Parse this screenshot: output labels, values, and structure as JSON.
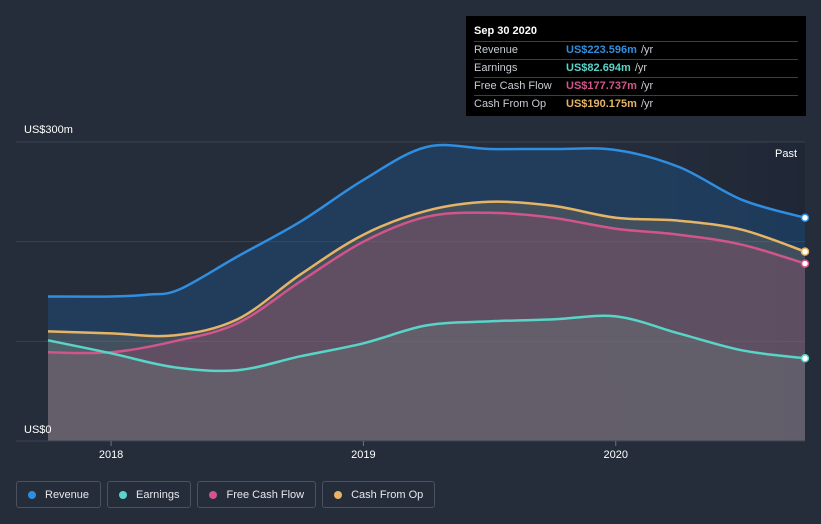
{
  "chart_data": {
    "type": "area",
    "y_unit_prefix": "US$",
    "y_unit_suffix": "m",
    "ylim": [
      0,
      300
    ],
    "y_tick_labels": [
      {
        "value": 300,
        "label": "US$300m"
      },
      {
        "value": 0,
        "label": "US$0"
      }
    ],
    "x_range": [
      2017.75,
      2020.75
    ],
    "x_ticks": [
      {
        "value": 2018,
        "label": "2018"
      },
      {
        "value": 2019,
        "label": "2019"
      },
      {
        "value": 2020,
        "label": "2020"
      }
    ],
    "past_label": "Past",
    "forecast_start": 2019.75,
    "series": [
      {
        "name": "Revenue",
        "key": "revenue",
        "color": "#2f8ee0",
        "x": [
          2017.75,
          2018.0,
          2018.15,
          2018.27,
          2018.5,
          2018.75,
          2019.0,
          2019.25,
          2019.5,
          2019.75,
          2020.0,
          2020.25,
          2020.5,
          2020.75
        ],
        "values": [
          145,
          145,
          147,
          152,
          185,
          220,
          262,
          295,
          293,
          293,
          292,
          275,
          242,
          224
        ]
      },
      {
        "name": "Earnings",
        "key": "earnings",
        "color": "#58d5c8",
        "x": [
          2017.75,
          2018.0,
          2018.25,
          2018.5,
          2018.75,
          2019.0,
          2019.25,
          2019.5,
          2019.75,
          2020.0,
          2020.25,
          2020.5,
          2020.75
        ],
        "values": [
          101,
          88,
          74,
          71,
          85,
          98,
          116,
          120,
          122,
          125,
          108,
          91,
          83
        ]
      },
      {
        "name": "Free Cash Flow",
        "key": "fcf",
        "color": "#d1558a",
        "x": [
          2017.75,
          2018.0,
          2018.25,
          2018.5,
          2018.75,
          2019.0,
          2019.25,
          2019.5,
          2019.75,
          2020.0,
          2020.25,
          2020.5,
          2020.75
        ],
        "values": [
          89,
          89,
          100,
          118,
          160,
          200,
          225,
          229,
          224,
          213,
          207,
          197,
          178
        ]
      },
      {
        "name": "Cash From Op",
        "key": "cfo",
        "color": "#e6b466",
        "x": [
          2017.75,
          2018.0,
          2018.25,
          2018.5,
          2018.75,
          2019.0,
          2019.25,
          2019.5,
          2019.75,
          2020.0,
          2020.25,
          2020.5,
          2020.75
        ],
        "values": [
          110,
          108,
          106,
          122,
          167,
          207,
          231,
          240,
          236,
          224,
          221,
          212,
          190
        ]
      }
    ]
  },
  "tooltip": {
    "date": "Sep 30 2020",
    "rows": [
      {
        "label": "Revenue",
        "value": "US$223.596m",
        "unit": "/yr"
      },
      {
        "label": "Earnings",
        "value": "US$82.694m",
        "unit": "/yr"
      },
      {
        "label": "Free Cash Flow",
        "value": "US$177.737m",
        "unit": "/yr"
      },
      {
        "label": "Cash From Op",
        "value": "US$190.175m",
        "unit": "/yr"
      }
    ]
  },
  "legend": [
    {
      "label": "Revenue"
    },
    {
      "label": "Earnings"
    },
    {
      "label": "Free Cash Flow"
    },
    {
      "label": "Cash From Op"
    }
  ]
}
